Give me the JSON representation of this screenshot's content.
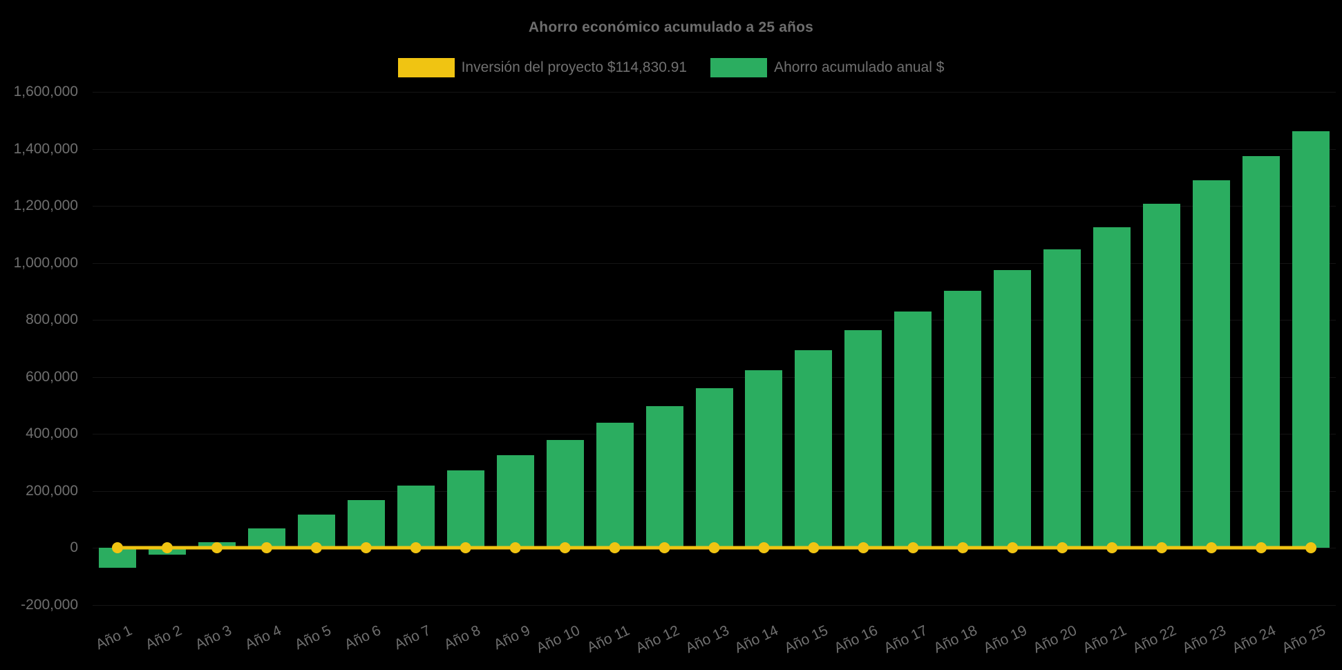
{
  "chart_data": {
    "type": "bar",
    "title": "Ahorro económico acumulado a 25 años",
    "categories": [
      "Año 1",
      "Año 2",
      "Año 3",
      "Año 4",
      "Año 5",
      "Año 6",
      "Año 7",
      "Año 8",
      "Año 9",
      "Año 10",
      "Año 11",
      "Año 12",
      "Año 13",
      "Año 14",
      "Año 15",
      "Año 16",
      "Año 17",
      "Año 18",
      "Año 19",
      "Año 20",
      "Año 21",
      "Año 22",
      "Año 23",
      "Año 24",
      "Año 25"
    ],
    "series": [
      {
        "name": "Inversión del proyecto $114,830.91",
        "type": "line",
        "color": "#F0C412",
        "marker": "circle",
        "constant_value": 0
      },
      {
        "name": "Ahorro acumulado anual $",
        "type": "bar",
        "color": "#2BAD60",
        "values": [
          -70000,
          -24000,
          19000,
          68000,
          116000,
          167000,
          218000,
          271000,
          325000,
          378000,
          438000,
          497000,
          560000,
          623000,
          694000,
          763000,
          829000,
          901000,
          974000,
          1047000,
          1125000,
          1207000,
          1290000,
          1374000,
          1462000
        ]
      }
    ],
    "ylim": [
      -200000,
      1600000
    ],
    "ytick_step": 200000,
    "yticks": [
      {
        "value": 1600000,
        "label": "1,600,000"
      },
      {
        "value": 1400000,
        "label": "1,400,000"
      },
      {
        "value": 1200000,
        "label": "1,200,000"
      },
      {
        "value": 1000000,
        "label": "1,000,000"
      },
      {
        "value": 800000,
        "label": "800,000"
      },
      {
        "value": 600000,
        "label": "600,000"
      },
      {
        "value": 400000,
        "label": "400,000"
      },
      {
        "value": 200000,
        "label": "200,000"
      },
      {
        "value": 0,
        "label": "0"
      },
      {
        "value": -200000,
        "label": "-200,000"
      }
    ],
    "xlabel": "",
    "ylabel": "",
    "legend_position": "top",
    "grid": "off",
    "background": "#000000",
    "text_color": "#6f6f6f"
  }
}
